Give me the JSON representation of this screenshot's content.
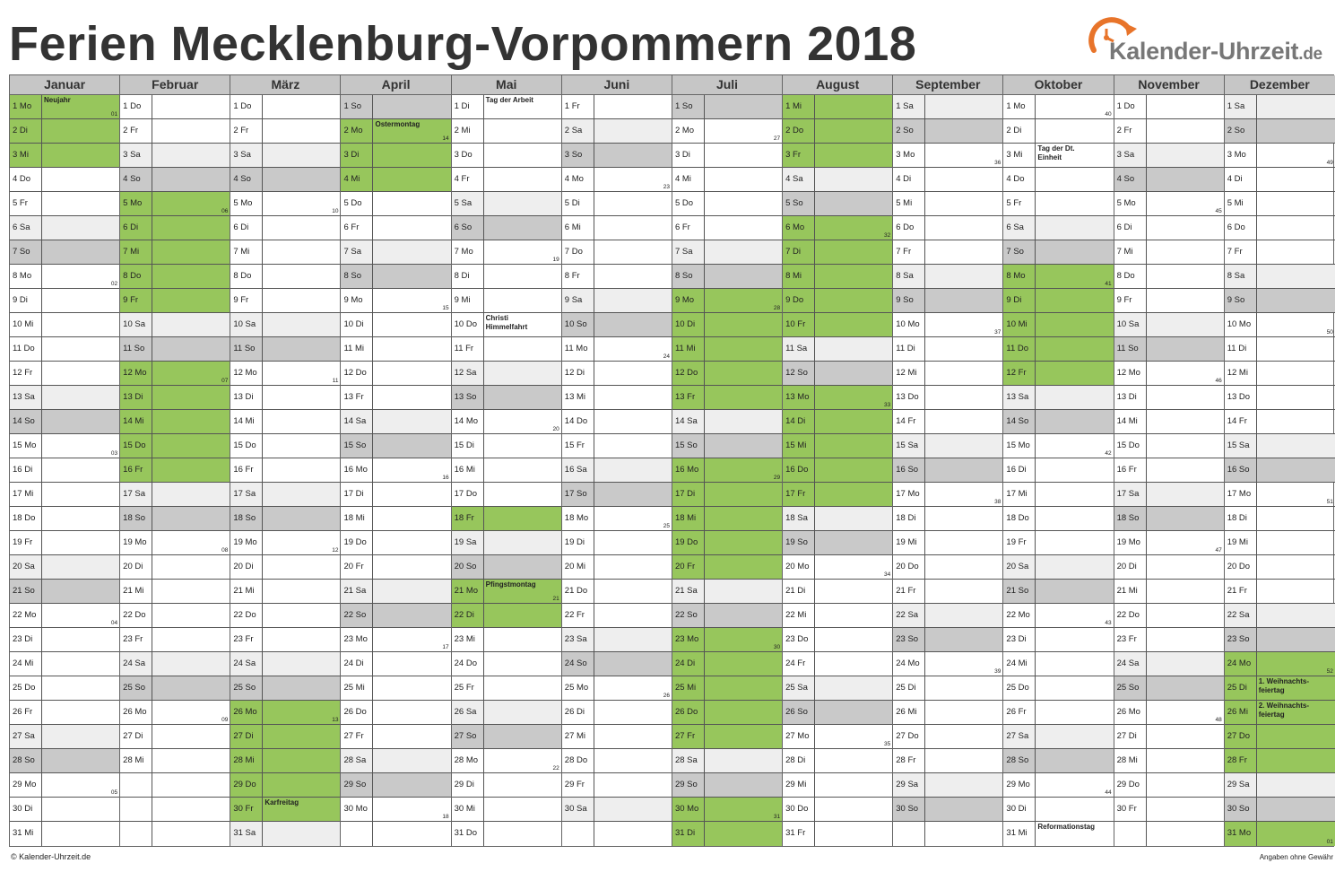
{
  "title": "Ferien Mecklenburg-Vorpommern 2018",
  "logo": {
    "name": "Kalender-Uhrzeit",
    "tld": ".de",
    "icon": "clock-arrow-icon",
    "color": "#e8742a"
  },
  "colors": {
    "holiday": "#97c65c",
    "sunday": "#c9c9c9",
    "saturday": "#eeeeee",
    "header": "#c6c6c6"
  },
  "months": [
    {
      "name": "Januar",
      "days": [
        "1 Mo",
        "2 Di",
        "3 Mi",
        "4 Do",
        "5 Fr",
        "6 Sa",
        "7 So",
        "8 Mo",
        "9 Di",
        "10 Mi",
        "11 Do",
        "12 Fr",
        "13 Sa",
        "14 So",
        "15 Mo",
        "16 Di",
        "17 Mi",
        "18 Do",
        "19 Fr",
        "20 Sa",
        "21 So",
        "22 Mo",
        "23 Di",
        "24 Mi",
        "25 Do",
        "26 Fr",
        "27 Sa",
        "28 So",
        "29 Mo",
        "30 Di",
        "31 Mi"
      ],
      "start": 1,
      "ferien": [
        1,
        2,
        3
      ],
      "holidays": {
        "1": "Neujahr"
      },
      "weeks": {
        "1": "01",
        "8": "02",
        "15": "03",
        "22": "04",
        "29": "05"
      }
    },
    {
      "name": "Februar",
      "days": [
        "1 Do",
        "2 Fr",
        "3 Sa",
        "4 So",
        "5 Mo",
        "6 Di",
        "7 Mi",
        "8 Do",
        "9 Fr",
        "10 Sa",
        "11 So",
        "12 Mo",
        "13 Di",
        "14 Mi",
        "15 Do",
        "16 Fr",
        "17 Sa",
        "18 So",
        "19 Mo",
        "20 Di",
        "21 Mi",
        "22 Do",
        "23 Fr",
        "24 Sa",
        "25 So",
        "26 Mo",
        "27 Di",
        "28 Mi"
      ],
      "start": 4,
      "ferien": [
        5,
        6,
        7,
        8,
        9,
        12,
        13,
        14,
        15,
        16
      ],
      "holidays": {},
      "weeks": {
        "5": "06",
        "12": "07",
        "19": "08",
        "26": "09"
      }
    },
    {
      "name": "März",
      "days": [
        "1 Do",
        "2 Fr",
        "3 Sa",
        "4 So",
        "5 Mo",
        "6 Di",
        "7 Mi",
        "8 Do",
        "9 Fr",
        "10 Sa",
        "11 So",
        "12 Mo",
        "13 Di",
        "14 Mi",
        "15 Do",
        "16 Fr",
        "17 Sa",
        "18 So",
        "19 Mo",
        "20 Di",
        "21 Mi",
        "22 Do",
        "23 Fr",
        "24 Sa",
        "25 So",
        "26 Mo",
        "27 Di",
        "28 Mi",
        "29 Do",
        "30 Fr",
        "31 Sa"
      ],
      "start": 4,
      "ferien": [
        26,
        27,
        28,
        29,
        30
      ],
      "holidays": {
        "30": "Karfreitag"
      },
      "weeks": {
        "5": "10",
        "12": "11",
        "19": "12",
        "26": "13"
      }
    },
    {
      "name": "April",
      "days": [
        "1 So",
        "2 Mo",
        "3 Di",
        "4 Mi",
        "5 Do",
        "6 Fr",
        "7 Sa",
        "8 So",
        "9 Mo",
        "10 Di",
        "11 Mi",
        "12 Do",
        "13 Fr",
        "14 Sa",
        "15 So",
        "16 Mo",
        "17 Di",
        "18 Mi",
        "19 Do",
        "20 Fr",
        "21 Sa",
        "22 So",
        "23 Mo",
        "24 Di",
        "25 Mi",
        "26 Do",
        "27 Fr",
        "28 Sa",
        "29 So",
        "30 Mo"
      ],
      "start": 7,
      "ferien": [
        2,
        3,
        4
      ],
      "holidays": {
        "2": "Ostermontag"
      },
      "weeks": {
        "2": "14",
        "9": "15",
        "16": "16",
        "23": "17",
        "30": "18"
      }
    },
    {
      "name": "Mai",
      "days": [
        "1 Di",
        "2 Mi",
        "3 Do",
        "4 Fr",
        "5 Sa",
        "6 So",
        "7 Mo",
        "8 Di",
        "9 Mi",
        "10 Do",
        "11 Fr",
        "12 Sa",
        "13 So",
        "14 Mo",
        "15 Di",
        "16 Mi",
        "17 Do",
        "18 Fr",
        "19 Sa",
        "20 So",
        "21 Mo",
        "22 Di",
        "23 Mi",
        "24 Do",
        "25 Fr",
        "26 Sa",
        "27 So",
        "28 Mo",
        "29 Di",
        "30 Mi",
        "31 Do"
      ],
      "start": 2,
      "ferien": [
        18,
        21,
        22
      ],
      "holidays": {
        "1": "Tag der Arbeit",
        "10": "Christi\nHimmelfahrt",
        "21": "Pfingstmontag"
      },
      "weeks": {
        "7": "19",
        "14": "20",
        "21": "21",
        "28": "22"
      }
    },
    {
      "name": "Juni",
      "days": [
        "1 Fr",
        "2 Sa",
        "3 So",
        "4 Mo",
        "5 Di",
        "6 Mi",
        "7 Do",
        "8 Fr",
        "9 Sa",
        "10 So",
        "11 Mo",
        "12 Di",
        "13 Mi",
        "14 Do",
        "15 Fr",
        "16 Sa",
        "17 So",
        "18 Mo",
        "19 Di",
        "20 Mi",
        "21 Do",
        "22 Fr",
        "23 Sa",
        "24 So",
        "25 Mo",
        "26 Di",
        "27 Mi",
        "28 Do",
        "29 Fr",
        "30 Sa"
      ],
      "start": 5,
      "ferien": [],
      "holidays": {},
      "weeks": {
        "4": "23",
        "11": "24",
        "18": "25",
        "25": "26"
      }
    },
    {
      "name": "Juli",
      "days": [
        "1 So",
        "2 Mo",
        "3 Di",
        "4 Mi",
        "5 Do",
        "6 Fr",
        "7 Sa",
        "8 So",
        "9 Mo",
        "10 Di",
        "11 Mi",
        "12 Do",
        "13 Fr",
        "14 Sa",
        "15 So",
        "16 Mo",
        "17 Di",
        "18 Mi",
        "19 Do",
        "20 Fr",
        "21 Sa",
        "22 So",
        "23 Mo",
        "24 Di",
        "25 Mi",
        "26 Do",
        "27 Fr",
        "28 Sa",
        "29 So",
        "30 Mo",
        "31 Di"
      ],
      "start": 7,
      "ferien": [
        9,
        10,
        11,
        12,
        13,
        16,
        17,
        18,
        19,
        20,
        23,
        24,
        25,
        26,
        27,
        30,
        31
      ],
      "holidays": {},
      "weeks": {
        "2": "27",
        "9": "28",
        "16": "29",
        "23": "30",
        "30": "31"
      }
    },
    {
      "name": "August",
      "days": [
        "1 Mi",
        "2 Do",
        "3 Fr",
        "4 Sa",
        "5 So",
        "6 Mo",
        "7 Di",
        "8 Mi",
        "9 Do",
        "10 Fr",
        "11 Sa",
        "12 So",
        "13 Mo",
        "14 Di",
        "15 Mi",
        "16 Do",
        "17 Fr",
        "18 Sa",
        "19 So",
        "20 Mo",
        "21 Di",
        "22 Mi",
        "23 Do",
        "24 Fr",
        "25 Sa",
        "26 So",
        "27 Mo",
        "28 Di",
        "29 Mi",
        "30 Do",
        "31 Fr"
      ],
      "start": 3,
      "ferien": [
        1,
        2,
        3,
        6,
        7,
        8,
        9,
        10,
        13,
        14,
        15,
        16,
        17
      ],
      "holidays": {},
      "weeks": {
        "6": "32",
        "13": "33",
        "20": "34",
        "27": "35"
      }
    },
    {
      "name": "September",
      "days": [
        "1 Sa",
        "2 So",
        "3 Mo",
        "4 Di",
        "5 Mi",
        "6 Do",
        "7 Fr",
        "8 Sa",
        "9 So",
        "10 Mo",
        "11 Di",
        "12 Mi",
        "13 Do",
        "14 Fr",
        "15 Sa",
        "16 So",
        "17 Mo",
        "18 Di",
        "19 Mi",
        "20 Do",
        "21 Fr",
        "22 Sa",
        "23 So",
        "24 Mo",
        "25 Di",
        "26 Mi",
        "27 Do",
        "28 Fr",
        "29 Sa",
        "30 So"
      ],
      "start": 6,
      "ferien": [],
      "holidays": {},
      "weeks": {
        "3": "36",
        "10": "37",
        "17": "38",
        "24": "39"
      }
    },
    {
      "name": "Oktober",
      "days": [
        "1 Mo",
        "2 Di",
        "3 Mi",
        "4 Do",
        "5 Fr",
        "6 Sa",
        "7 So",
        "8 Mo",
        "9 Di",
        "10 Mi",
        "11 Do",
        "12 Fr",
        "13 Sa",
        "14 So",
        "15 Mo",
        "16 Di",
        "17 Mi",
        "18 Do",
        "19 Fr",
        "20 Sa",
        "21 So",
        "22 Mo",
        "23 Di",
        "24 Mi",
        "25 Do",
        "26 Fr",
        "27 Sa",
        "28 So",
        "29 Mo",
        "30 Di",
        "31 Mi"
      ],
      "start": 1,
      "ferien": [
        8,
        9,
        10,
        11,
        12
      ],
      "holidays": {
        "3": "Tag der Dt.\nEinheit",
        "31": "Reformationstag"
      },
      "weeks": {
        "1": "40",
        "8": "41",
        "15": "42",
        "22": "43",
        "29": "44"
      }
    },
    {
      "name": "November",
      "days": [
        "1 Do",
        "2 Fr",
        "3 Sa",
        "4 So",
        "5 Mo",
        "6 Di",
        "7 Mi",
        "8 Do",
        "9 Fr",
        "10 Sa",
        "11 So",
        "12 Mo",
        "13 Di",
        "14 Mi",
        "15 Do",
        "16 Fr",
        "17 Sa",
        "18 So",
        "19 Mo",
        "20 Di",
        "21 Mi",
        "22 Do",
        "23 Fr",
        "24 Sa",
        "25 So",
        "26 Mo",
        "27 Di",
        "28 Mi",
        "29 Do",
        "30 Fr"
      ],
      "start": 4,
      "ferien": [],
      "holidays": {},
      "weeks": {
        "5": "45",
        "12": "46",
        "19": "47",
        "26": "48"
      }
    },
    {
      "name": "Dezember",
      "days": [
        "1 Sa",
        "2 So",
        "3 Mo",
        "4 Di",
        "5 Mi",
        "6 Do",
        "7 Fr",
        "8 Sa",
        "9 So",
        "10 Mo",
        "11 Di",
        "12 Mi",
        "13 Do",
        "14 Fr",
        "15 Sa",
        "16 So",
        "17 Mo",
        "18 Di",
        "19 Mi",
        "20 Do",
        "21 Fr",
        "22 Sa",
        "23 So",
        "24 Mo",
        "25 Di",
        "26 Mi",
        "27 Do",
        "28 Fr",
        "29 Sa",
        "30 So",
        "31 Mo"
      ],
      "start": 6,
      "ferien": [
        24,
        25,
        26,
        27,
        28,
        31
      ],
      "holidays": {
        "25": "1. Weihnachts-\nfeiertag",
        "26": "2. Weihnachts-\nfeiertag"
      },
      "weeks": {
        "3": "49",
        "10": "50",
        "17": "51",
        "24": "52",
        "31": "01"
      }
    }
  ],
  "footer": {
    "left": "© Kalender-Uhrzeit.de",
    "right": "Angaben ohne Gewähr"
  }
}
